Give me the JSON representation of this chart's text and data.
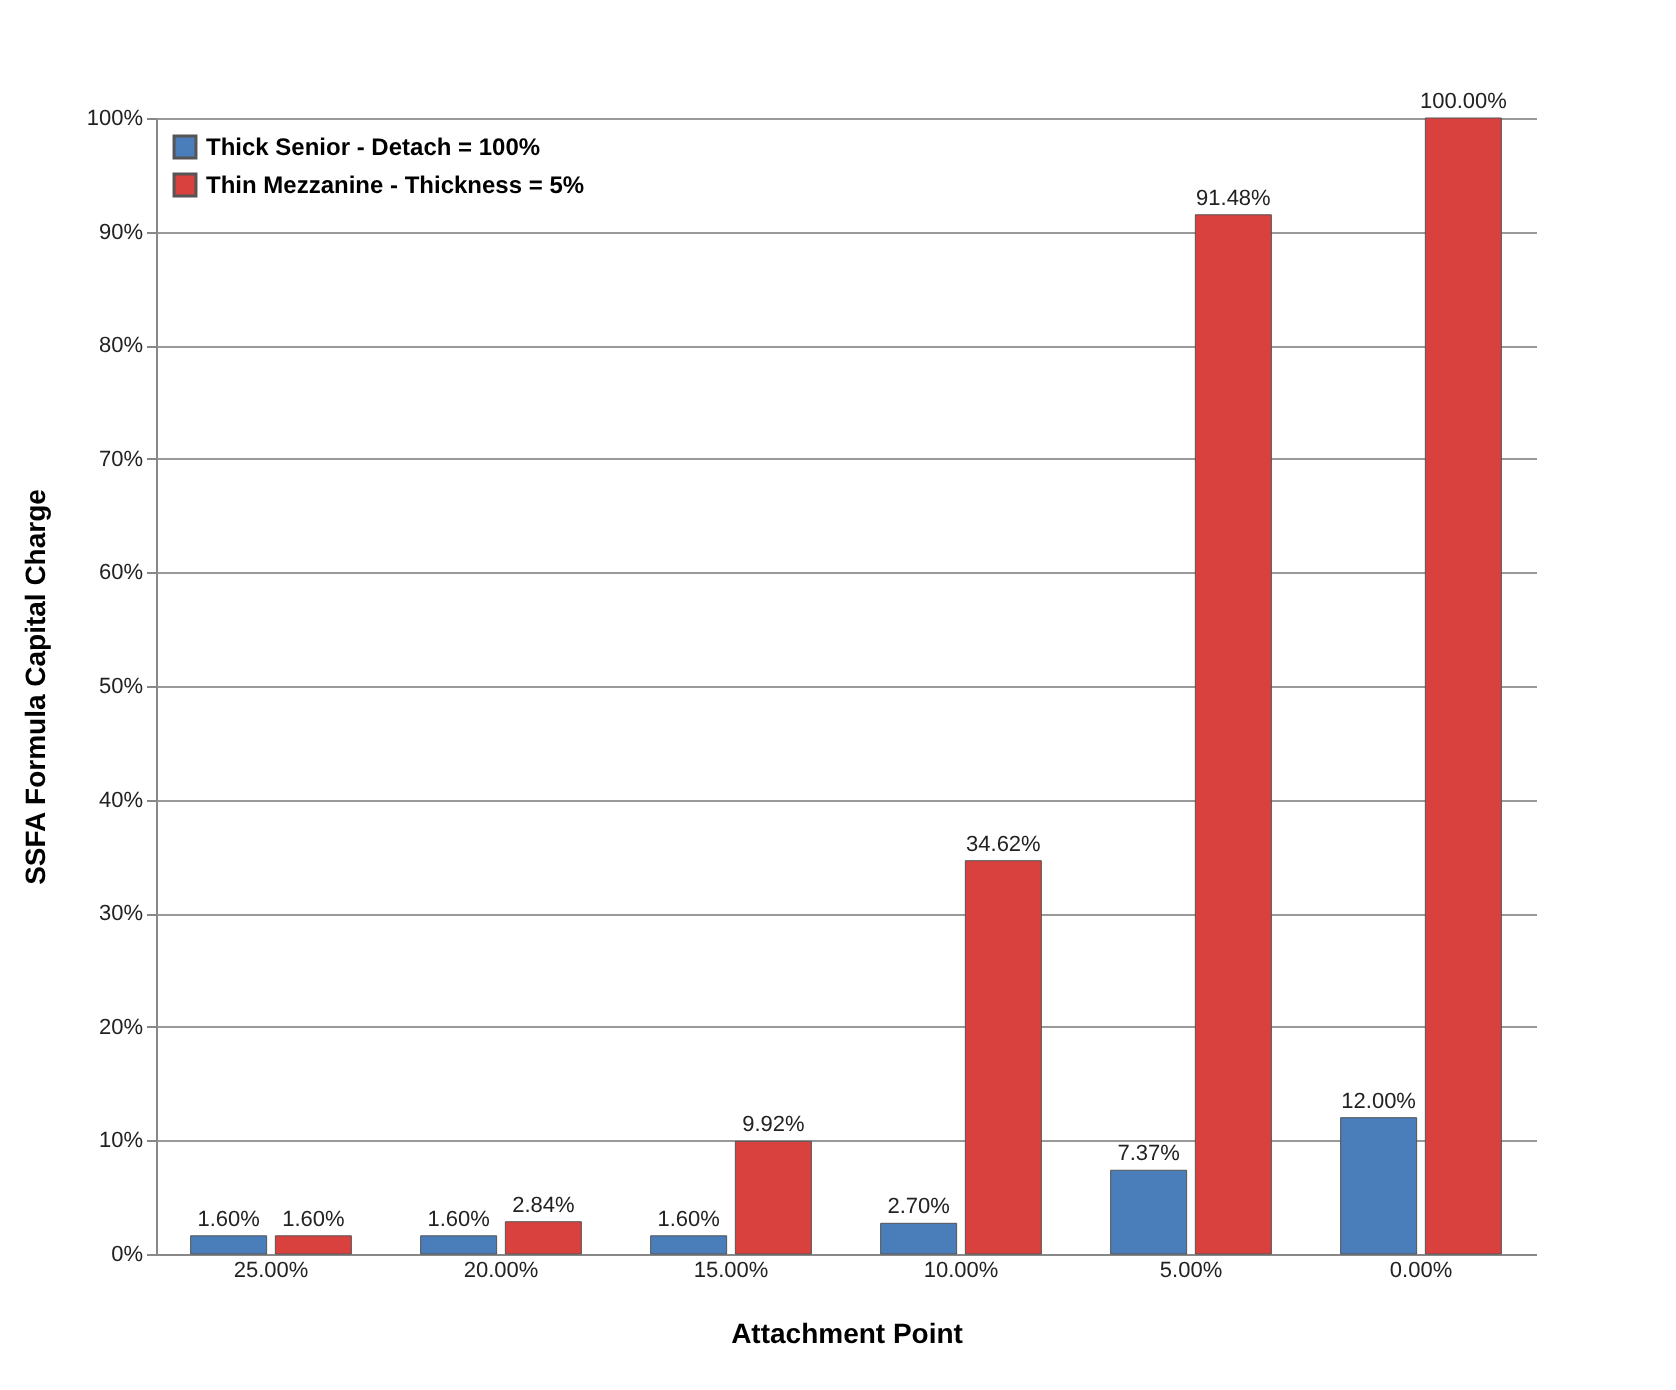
{
  "chart_data": {
    "type": "bar",
    "xlabel": "Attachment Point",
    "ylabel": "SSFA Formula Capital Charge",
    "categories": [
      "25.00%",
      "20.00%",
      "15.00%",
      "10.00%",
      "5.00%",
      "0.00%"
    ],
    "series": [
      {
        "name": "Thick Senior - Detach = 100%",
        "color": "#4a7ebb",
        "values": [
          1.6,
          1.6,
          1.6,
          2.7,
          7.37,
          12.0
        ],
        "value_labels": [
          "1.60%",
          "1.60%",
          "1.60%",
          "2.70%",
          "7.37%",
          "12.00%"
        ]
      },
      {
        "name": "Thin Mezzanine - Thickness = 5%",
        "color": "#d9413e",
        "values": [
          1.6,
          2.84,
          9.92,
          34.62,
          91.48,
          100.0
        ],
        "value_labels": [
          "1.60%",
          "2.84%",
          "9.92%",
          "34.62%",
          "91.48%",
          "100.00%"
        ]
      }
    ],
    "ylim": [
      0,
      100
    ],
    "yticks": [
      {
        "value": 0,
        "label": "0%"
      },
      {
        "value": 10,
        "label": "10%"
      },
      {
        "value": 20,
        "label": "20%"
      },
      {
        "value": 30,
        "label": "30%"
      },
      {
        "value": 40,
        "label": "40%"
      },
      {
        "value": 50,
        "label": "50%"
      },
      {
        "value": 60,
        "label": "60%"
      },
      {
        "value": 70,
        "label": "70%"
      },
      {
        "value": 80,
        "label": "80%"
      },
      {
        "value": 90,
        "label": "90%"
      },
      {
        "value": 100,
        "label": "100%"
      }
    ],
    "grid": "y",
    "legend": "top left"
  }
}
